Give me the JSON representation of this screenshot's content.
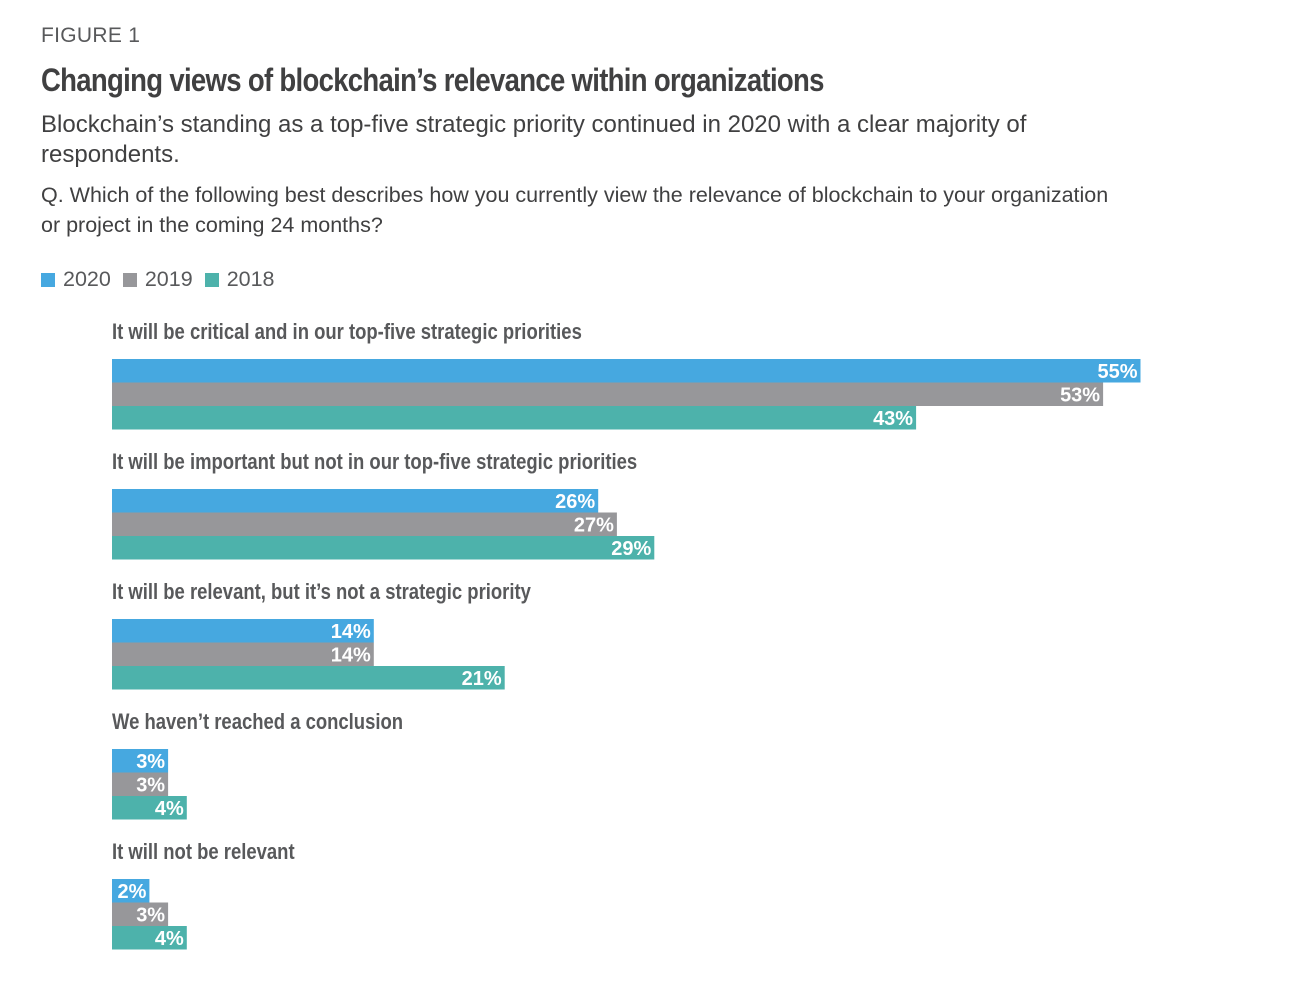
{
  "figure_label": "FIGURE 1",
  "title": "Changing views of blockchain’s relevance within organizations",
  "subtitle": "Blockchain’s standing as a top-five strategic priority continued in 2020 with a clear majority of respondents.",
  "question": "Q. Which of the following best describes how you currently view the relevance of blockchain to your organization or project in the coming 24 months?",
  "colors": {
    "2020": "#46a8e0",
    "2019": "#97979a",
    "2018": "#4db2ab"
  },
  "chart_data": {
    "type": "bar",
    "orientation": "horizontal",
    "categories": [
      "It will be critical and in our top-five strategic priorities",
      "It will be important but not in our top-five strategic priorities",
      "It will be relevant, but it’s not a strategic priority",
      "We haven’t reached a conclusion",
      "It will not be relevant"
    ],
    "series": [
      {
        "name": "2020",
        "values": [
          55,
          26,
          14,
          3,
          2
        ],
        "labels": [
          "55%",
          "26%",
          "14%",
          "3%",
          "2%"
        ]
      },
      {
        "name": "2019",
        "values": [
          53,
          27,
          14,
          3,
          3
        ],
        "labels": [
          "53%",
          "27%",
          "14%",
          "3%",
          "3%"
        ]
      },
      {
        "name": "2018",
        "values": [
          43,
          29,
          21,
          4,
          4
        ],
        "labels": [
          "43%",
          "29%",
          "21%",
          "4%",
          "4%"
        ]
      }
    ],
    "unit": "%",
    "legend_position": "top-left",
    "grid": false
  }
}
